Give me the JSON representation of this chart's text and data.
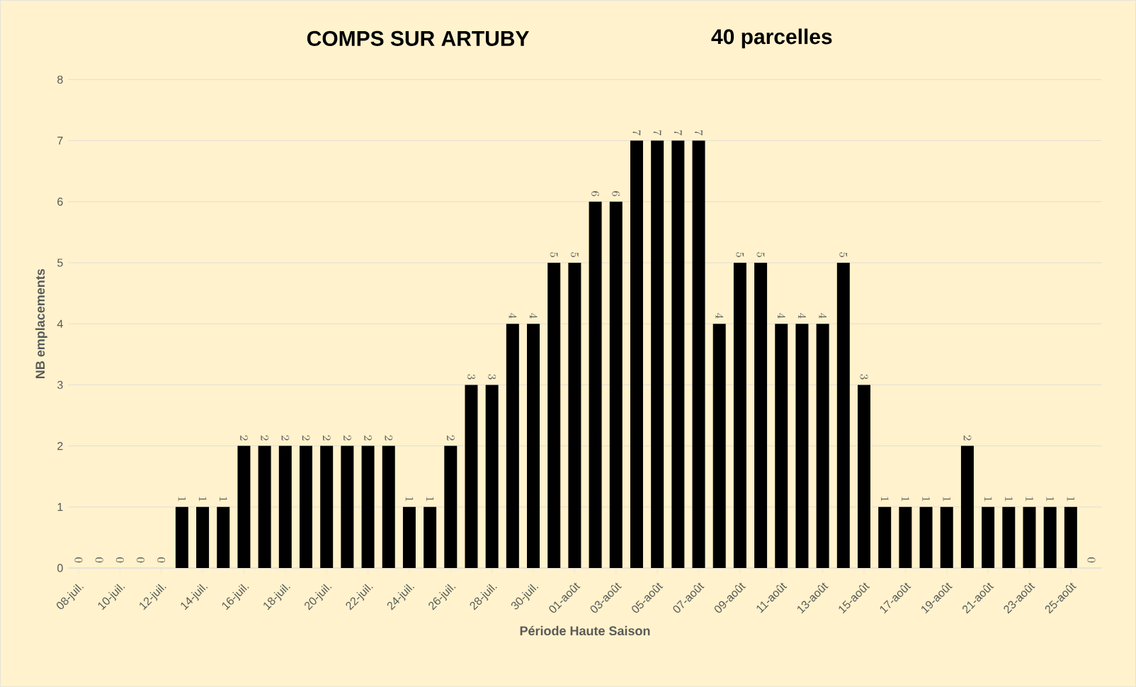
{
  "chart_data": {
    "type": "bar",
    "title": "COMPS SUR ARTUBY",
    "subtitle": "40 parcelles",
    "xlabel": "Période Haute Saison",
    "ylabel": "NB emplacements",
    "categories": [
      "08-juil.",
      null,
      "10-juil.",
      null,
      "12-juil.",
      null,
      "14-juil.",
      null,
      "16-juil.",
      null,
      "18-juil.",
      null,
      "20-juil.",
      null,
      "22-juil.",
      null,
      "24-juil.",
      null,
      "26-juil.",
      null,
      "28-juil.",
      null,
      "30-juil.",
      null,
      "01-août",
      null,
      "03-août",
      null,
      "05-août",
      null,
      "07-août",
      null,
      "09-août",
      null,
      "11-août",
      null,
      "13-août",
      null,
      "15-août",
      null,
      "17-août",
      null,
      "19-août",
      null,
      "21-août",
      null,
      "23-août",
      null,
      "25-août",
      null
    ],
    "values": [
      0,
      0,
      0,
      0,
      0,
      1,
      1,
      1,
      2,
      2,
      2,
      2,
      2,
      2,
      2,
      2,
      1,
      1,
      2,
      3,
      3,
      4,
      4,
      5,
      5,
      6,
      6,
      7,
      7,
      7,
      7,
      4,
      5,
      5,
      4,
      4,
      4,
      5,
      3,
      1,
      1,
      1,
      1,
      2,
      1,
      1,
      1,
      1,
      1,
      0
    ],
    "color": "#000000",
    "ylim": [
      0,
      8
    ],
    "yticks": [
      0,
      1,
      2,
      3,
      4,
      5,
      6,
      7,
      8
    ],
    "grid": "y",
    "data_labels": true
  }
}
